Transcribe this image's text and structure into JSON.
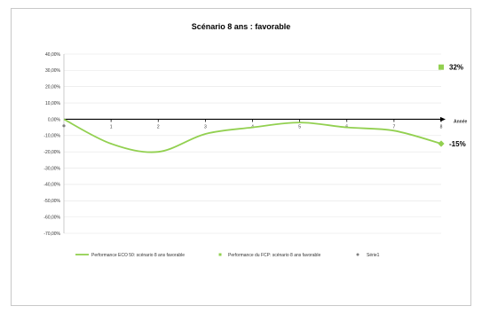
{
  "chart_data": {
    "type": "line",
    "title": "Scénario 8 ans :  favorable",
    "xlabel": "Année",
    "ylabel": "",
    "x": [
      0,
      1,
      2,
      3,
      4,
      5,
      6,
      7,
      8
    ],
    "x_tick_labels": [
      "1",
      "2",
      "3",
      "4",
      "5",
      "6",
      "7",
      "8"
    ],
    "ylim": [
      -0.7,
      0.4
    ],
    "y_ticks": [
      0.4,
      0.3,
      0.2,
      0.1,
      0.0,
      -0.1,
      -0.2,
      -0.3,
      -0.4,
      -0.5,
      -0.6,
      -0.7
    ],
    "y_tick_labels": [
      "40,00%",
      "30,00%",
      "20,00%",
      "10,00%",
      "0,00%",
      "-10,00%",
      "-20,00%",
      "-30,00%",
      "-40,00%",
      "-50,00%",
      "-60,00%",
      "-70,00%"
    ],
    "grid": true,
    "legend_position": "bottom",
    "series": [
      {
        "name": "Performance ECO 50: scénario 8 ans favorable",
        "values": [
          0.0,
          -0.15,
          -0.2,
          -0.09,
          -0.05,
          -0.02,
          -0.05,
          -0.07,
          -0.15
        ],
        "end_label": "-15%",
        "color": "#92d050",
        "marker": "diamond"
      },
      {
        "name": "Performance du FCP: scénario 8 ans favorable",
        "points": [
          {
            "x": 8,
            "y": 0.32
          }
        ],
        "end_label": "32%",
        "color": "#92d050",
        "marker": "square"
      },
      {
        "name": "Série1",
        "points": [
          {
            "x": 0,
            "y": -0.04
          }
        ],
        "color": "#7f7f7f",
        "marker": "circle"
      }
    ]
  }
}
